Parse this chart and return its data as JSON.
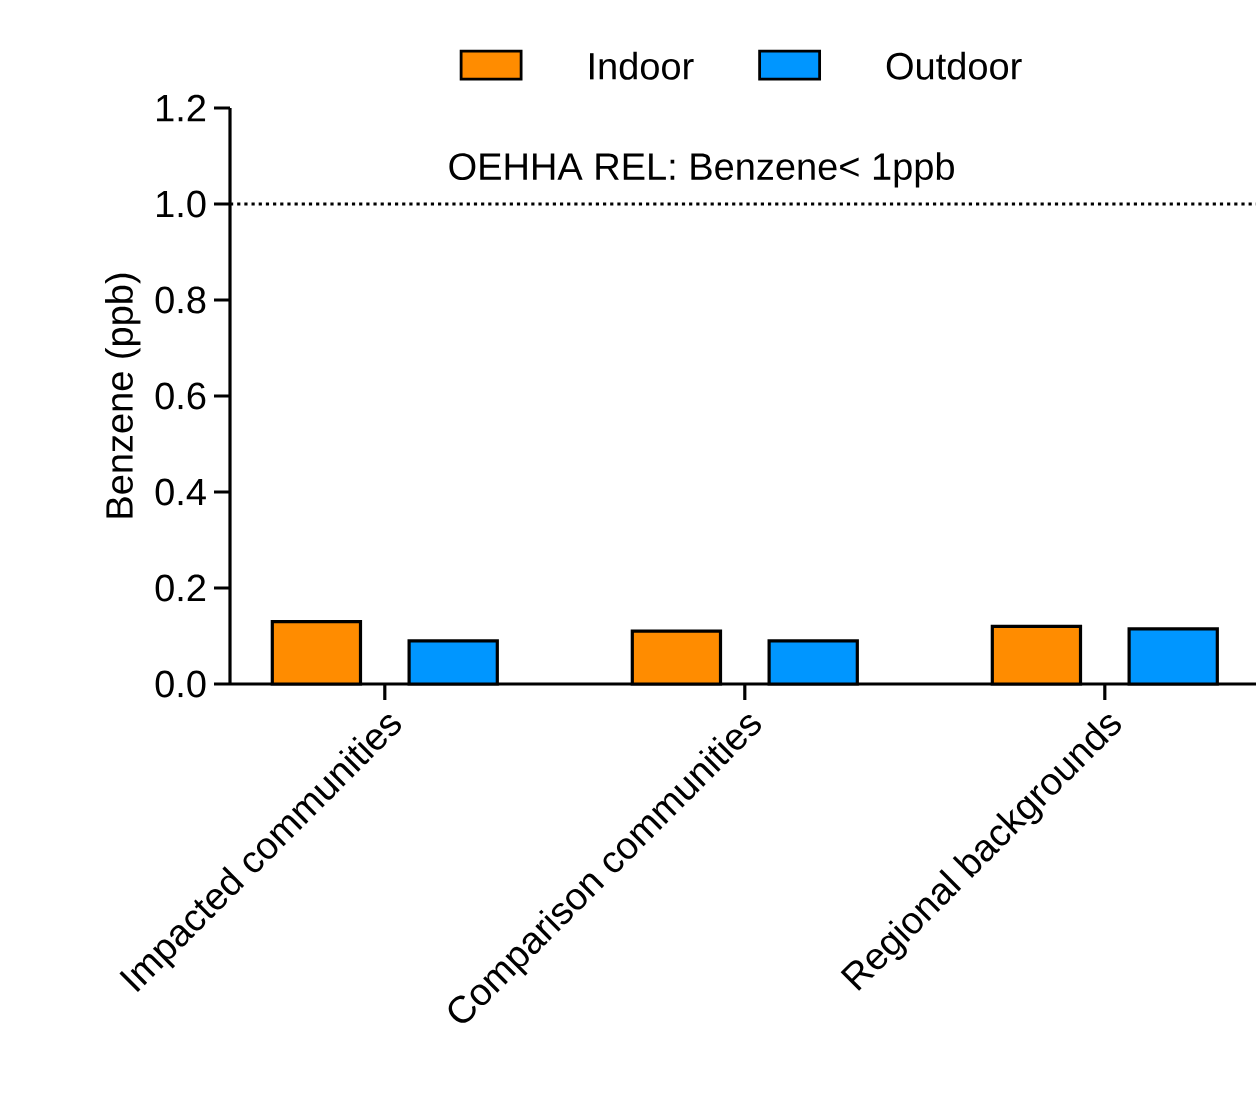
{
  "chart_data": {
    "type": "bar",
    "ylabel": "Benzene (ppb)",
    "categories": [
      "Impacted communities",
      "Comparison communities",
      "Regional backgrounds"
    ],
    "series": [
      {
        "name": "Indoor",
        "color": "#ff8c00",
        "values": [
          0.13,
          0.11,
          0.12
        ]
      },
      {
        "name": "Outdoor",
        "color": "#0096ff",
        "values": [
          0.09,
          0.09,
          0.115
        ]
      }
    ],
    "ylim": [
      0,
      1.2
    ],
    "yticks": [
      {
        "value": 0,
        "label": "0.0"
      },
      {
        "value": 0.2,
        "label": "0.2"
      },
      {
        "value": 0.4,
        "label": "0.4"
      },
      {
        "value": 0.6,
        "label": "0.6"
      },
      {
        "value": 0.8,
        "label": "0.8"
      },
      {
        "value": 1.0,
        "label": "1.0"
      },
      {
        "value": 1.2,
        "label": "1.2"
      }
    ],
    "ref_lines": [
      {
        "axis": "y",
        "value": 1.0,
        "label": "OEHHA REL: Benzene< 1ppb",
        "color": "#000000",
        "line_style": "dotted"
      }
    ],
    "grid": false,
    "legend": "top"
  }
}
